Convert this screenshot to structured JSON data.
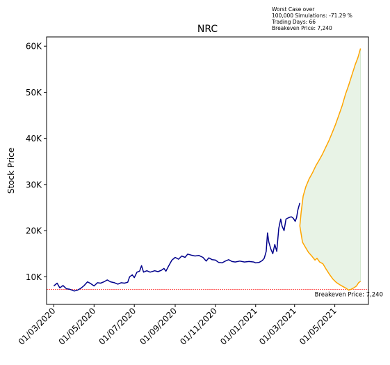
{
  "annotation": {
    "line1": "Worst Case over",
    "line2": "100,000 Simulations: -71.29 %",
    "line3": "Trading Days: 66",
    "line4": "Breakeven Price: 7,240"
  },
  "chart_data": {
    "type": "line",
    "title": "NRC",
    "xlabel": "",
    "ylabel": "Stock Price",
    "x_ticks": [
      "01/03/2020",
      "01/05/2020",
      "01/07/2020",
      "01/09/2020",
      "01/11/2020",
      "01/01/2021",
      "01/03/2021",
      "01/05/2021"
    ],
    "y_ticks": [
      "10K",
      "20K",
      "30K",
      "40K",
      "50K",
      "60K"
    ],
    "ylim": [
      4000,
      62000
    ],
    "grid": false,
    "breakeven": {
      "value": 7240,
      "label": "Breakeven Price: 7,240",
      "color": "#ff0000"
    },
    "series": [
      {
        "color": "#00008b",
        "points": [
          [
            "2020-03-01",
            8000
          ],
          [
            "2020-03-06",
            8600
          ],
          [
            "2020-03-10",
            7600
          ],
          [
            "2020-03-15",
            8100
          ],
          [
            "2020-03-20",
            7400
          ],
          [
            "2020-03-25",
            7300
          ],
          [
            "2020-04-01",
            6900
          ],
          [
            "2020-04-06",
            7100
          ],
          [
            "2020-04-11",
            7500
          ],
          [
            "2020-04-16",
            8100
          ],
          [
            "2020-04-21",
            8900
          ],
          [
            "2020-04-26",
            8500
          ],
          [
            "2020-05-01",
            8000
          ],
          [
            "2020-05-06",
            8700
          ],
          [
            "2020-05-11",
            8600
          ],
          [
            "2020-05-16",
            8900
          ],
          [
            "2020-05-21",
            9300
          ],
          [
            "2020-05-26",
            8900
          ],
          [
            "2020-06-01",
            8700
          ],
          [
            "2020-06-06",
            8400
          ],
          [
            "2020-06-11",
            8700
          ],
          [
            "2020-06-16",
            8600
          ],
          [
            "2020-06-21",
            8800
          ],
          [
            "2020-06-24",
            10000
          ],
          [
            "2020-06-28",
            10400
          ],
          [
            "2020-07-01",
            9800
          ],
          [
            "2020-07-05",
            11000
          ],
          [
            "2020-07-09",
            11200
          ],
          [
            "2020-07-12",
            12400
          ],
          [
            "2020-07-15",
            11000
          ],
          [
            "2020-07-20",
            11300
          ],
          [
            "2020-07-25",
            11000
          ],
          [
            "2020-08-01",
            11300
          ],
          [
            "2020-08-06",
            11100
          ],
          [
            "2020-08-11",
            11400
          ],
          [
            "2020-08-15",
            11800
          ],
          [
            "2020-08-18",
            11200
          ],
          [
            "2020-08-22",
            12300
          ],
          [
            "2020-08-27",
            13600
          ],
          [
            "2020-09-01",
            14200
          ],
          [
            "2020-09-06",
            13800
          ],
          [
            "2020-09-11",
            14500
          ],
          [
            "2020-09-16",
            14200
          ],
          [
            "2020-09-20",
            14900
          ],
          [
            "2020-09-25",
            14700
          ],
          [
            "2020-10-01",
            14500
          ],
          [
            "2020-10-07",
            14600
          ],
          [
            "2020-10-13",
            14200
          ],
          [
            "2020-10-18",
            13400
          ],
          [
            "2020-10-22",
            14100
          ],
          [
            "2020-10-27",
            13700
          ],
          [
            "2020-11-01",
            13600
          ],
          [
            "2020-11-06",
            13100
          ],
          [
            "2020-11-11",
            13000
          ],
          [
            "2020-11-16",
            13400
          ],
          [
            "2020-11-21",
            13700
          ],
          [
            "2020-11-26",
            13300
          ],
          [
            "2020-12-01",
            13200
          ],
          [
            "2020-12-08",
            13400
          ],
          [
            "2020-12-15",
            13200
          ],
          [
            "2020-12-22",
            13300
          ],
          [
            "2020-12-29",
            13200
          ],
          [
            "2021-01-01",
            13000
          ],
          [
            "2021-01-06",
            13100
          ],
          [
            "2021-01-11",
            13500
          ],
          [
            "2021-01-14",
            14000
          ],
          [
            "2021-01-17",
            15500
          ],
          [
            "2021-01-19",
            19500
          ],
          [
            "2021-01-21",
            17500
          ],
          [
            "2021-01-24",
            16000
          ],
          [
            "2021-01-27",
            15000
          ],
          [
            "2021-01-30",
            17000
          ],
          [
            "2021-02-02",
            15500
          ],
          [
            "2021-02-05",
            20500
          ],
          [
            "2021-02-08",
            22500
          ],
          [
            "2021-02-10",
            21000
          ],
          [
            "2021-02-13",
            20000
          ],
          [
            "2021-02-16",
            22500
          ],
          [
            "2021-02-20",
            22800
          ],
          [
            "2021-02-24",
            23000
          ],
          [
            "2021-02-27",
            22700
          ],
          [
            "2021-03-02",
            22000
          ],
          [
            "2021-03-04",
            22800
          ],
          [
            "2021-03-06",
            24500
          ],
          [
            "2021-03-09",
            26000
          ]
        ]
      },
      {
        "color": "#ffa500",
        "points": [
          [
            "2021-03-09",
            21000
          ],
          [
            "2021-03-11",
            24000
          ],
          [
            "2021-03-14",
            27500
          ],
          [
            "2021-03-18",
            29500
          ],
          [
            "2021-03-23",
            31200
          ],
          [
            "2021-03-28",
            32500
          ],
          [
            "2021-04-02",
            34000
          ],
          [
            "2021-04-07",
            35200
          ],
          [
            "2021-04-12",
            36500
          ],
          [
            "2021-04-17",
            38000
          ],
          [
            "2021-04-22",
            39500
          ],
          [
            "2021-04-27",
            41200
          ],
          [
            "2021-05-02",
            43000
          ],
          [
            "2021-05-07",
            45000
          ],
          [
            "2021-05-12",
            47000
          ],
          [
            "2021-05-17",
            49500
          ],
          [
            "2021-05-22",
            51500
          ],
          [
            "2021-05-27",
            53800
          ],
          [
            "2021-06-01",
            56000
          ],
          [
            "2021-06-05",
            57500
          ],
          [
            "2021-06-09",
            59500
          ]
        ]
      },
      {
        "color": "#ffa500",
        "points": [
          [
            "2021-03-09",
            21000
          ],
          [
            "2021-03-13",
            17500
          ],
          [
            "2021-03-17",
            16500
          ],
          [
            "2021-03-22",
            15300
          ],
          [
            "2021-03-27",
            14500
          ],
          [
            "2021-04-01",
            13600
          ],
          [
            "2021-04-04",
            14000
          ],
          [
            "2021-04-08",
            13200
          ],
          [
            "2021-04-13",
            12800
          ],
          [
            "2021-04-18",
            11600
          ],
          [
            "2021-04-23",
            10500
          ],
          [
            "2021-04-28",
            9500
          ],
          [
            "2021-05-03",
            8800
          ],
          [
            "2021-05-08",
            8300
          ],
          [
            "2021-05-13",
            7900
          ],
          [
            "2021-05-18",
            7500
          ],
          [
            "2021-05-22",
            7100
          ],
          [
            "2021-05-26",
            7300
          ],
          [
            "2021-05-30",
            7600
          ],
          [
            "2021-06-03",
            8000
          ],
          [
            "2021-06-06",
            8700
          ],
          [
            "2021-06-09",
            9000
          ]
        ]
      }
    ],
    "fill": {
      "color": "#e8f3e6"
    }
  }
}
